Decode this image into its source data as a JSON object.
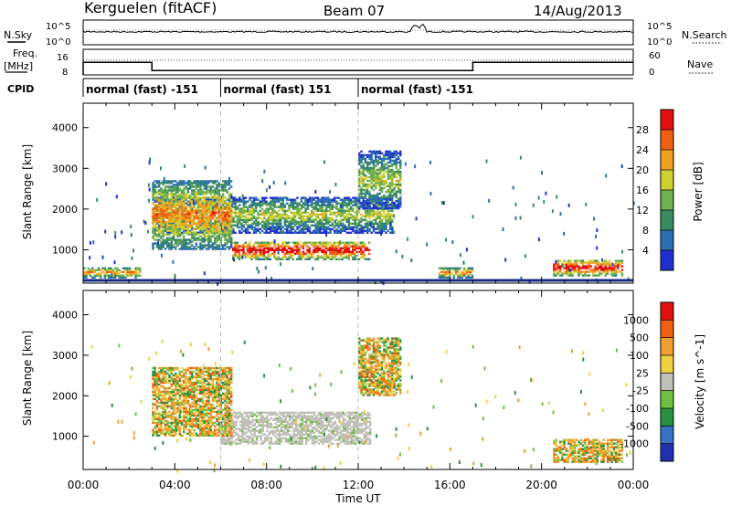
{
  "header": {
    "station": "Kerguelen (fitACF)",
    "beam": "Beam 07",
    "date": "14/Aug/2013"
  },
  "top_panels": {
    "nsky_label": "N.Sky",
    "nsearch_label": "N.Search",
    "freq_label_1": "Freq.",
    "freq_label_2": "[MHz]",
    "nave_label": "Nave",
    "cpid_label": "CPID",
    "left_ticks_nsky": [
      "10^5",
      "10^0"
    ],
    "right_ticks_nsky": [
      "10^5",
      "10^0"
    ],
    "left_ticks_freq": [
      "16",
      "8"
    ],
    "right_ticks_nave": [
      "60",
      "0"
    ],
    "cpid_segments": [
      {
        "start_hour": 0,
        "end_hour": 6,
        "label": "normal (fast) -151"
      },
      {
        "start_hour": 6,
        "end_hour": 12,
        "label": "normal (fast) 151"
      },
      {
        "start_hour": 12,
        "end_hour": 24,
        "label": "normal (fast) -151"
      }
    ],
    "freq_steps": [
      {
        "start_hour": 0,
        "end_hour": 3,
        "level": 0.85
      },
      {
        "start_hour": 3,
        "end_hour": 17,
        "level": 0.25
      },
      {
        "start_hour": 17,
        "end_hour": 24,
        "level": 0.85
      }
    ]
  },
  "chart_data": [
    {
      "type": "heatmap",
      "name": "power",
      "ylabel": "Slant Range [km]",
      "xlabel": "Time UT",
      "xlim": [
        0,
        24
      ],
      "ylim": [
        180,
        4600
      ],
      "x_ticks": [
        "00:00",
        "04:00",
        "08:00",
        "12:00",
        "16:00",
        "20:00",
        "00:00"
      ],
      "y_ticks": [
        1000,
        2000,
        3000,
        4000
      ],
      "colorbar_label": "Power [dB]",
      "colorbar_ticks": [
        "28",
        "24",
        "20",
        "16",
        "12",
        "8",
        "4"
      ],
      "colorbar_colors": [
        "#2030d0",
        "#2c6fb0",
        "#3a8c60",
        "#6fb050",
        "#cfd030",
        "#f0a020",
        "#f06010",
        "#e01010"
      ],
      "features": [
        {
          "label": "main echo band",
          "t0": 6.5,
          "t1": 12.5,
          "r0": 750,
          "r1": 1200,
          "peak": "red"
        },
        {
          "label": "upper band",
          "t0": 3,
          "t1": 13.5,
          "r0": 1400,
          "r1": 2300,
          "peak": "green"
        },
        {
          "label": "early plume",
          "t0": 3,
          "t1": 6.5,
          "r0": 1000,
          "r1": 2700,
          "peak": "orange"
        },
        {
          "label": "late plume",
          "t0": 12,
          "t1": 13.8,
          "r0": 2000,
          "r1": 3400,
          "peak": "green"
        },
        {
          "label": "ground scatter early",
          "t0": 0,
          "t1": 2.5,
          "r0": 300,
          "r1": 550,
          "peak": "orange"
        },
        {
          "label": "post-midnight patch",
          "t0": 15.5,
          "t1": 17,
          "r0": 300,
          "r1": 550,
          "peak": "orange"
        },
        {
          "label": "evening patch",
          "t0": 20.5,
          "t1": 23.5,
          "r0": 350,
          "r1": 750,
          "peak": "red"
        }
      ]
    },
    {
      "type": "heatmap",
      "name": "velocity",
      "ylabel": "Slant Range [km]",
      "xlabel": "Time UT",
      "xlim": [
        0,
        24
      ],
      "ylim": [
        180,
        4600
      ],
      "x_ticks": [
        "00:00",
        "04:00",
        "08:00",
        "12:00",
        "16:00",
        "20:00",
        "00:00"
      ],
      "y_ticks": [
        1000,
        2000,
        3000,
        4000
      ],
      "colorbar_label": "Velocity [m s^-1]",
      "colorbar_ticks": [
        "1000",
        "500",
        "100",
        "25",
        "-25",
        "-100",
        "-500",
        "-1000"
      ],
      "colorbar_colors": [
        "#2030b0",
        "#3870c8",
        "#2a9040",
        "#70c040",
        "#c0c0b8",
        "#f0d040",
        "#f0a030",
        "#f06010",
        "#e01010"
      ],
      "features": [
        {
          "label": "gray ionospheric band",
          "t0": 6,
          "t1": 12.5,
          "r0": 800,
          "r1": 1600,
          "value": "near zero"
        },
        {
          "label": "early plume",
          "t0": 3,
          "t1": 6.5,
          "r0": 1000,
          "r1": 2700,
          "value": "orange/green"
        },
        {
          "label": "late plume",
          "t0": 12,
          "t1": 13.8,
          "r0": 2000,
          "r1": 3400,
          "value": "orange"
        },
        {
          "label": "evening patch",
          "t0": 20.5,
          "t1": 23.5,
          "r0": 350,
          "r1": 900,
          "value": "orange"
        }
      ]
    }
  ]
}
